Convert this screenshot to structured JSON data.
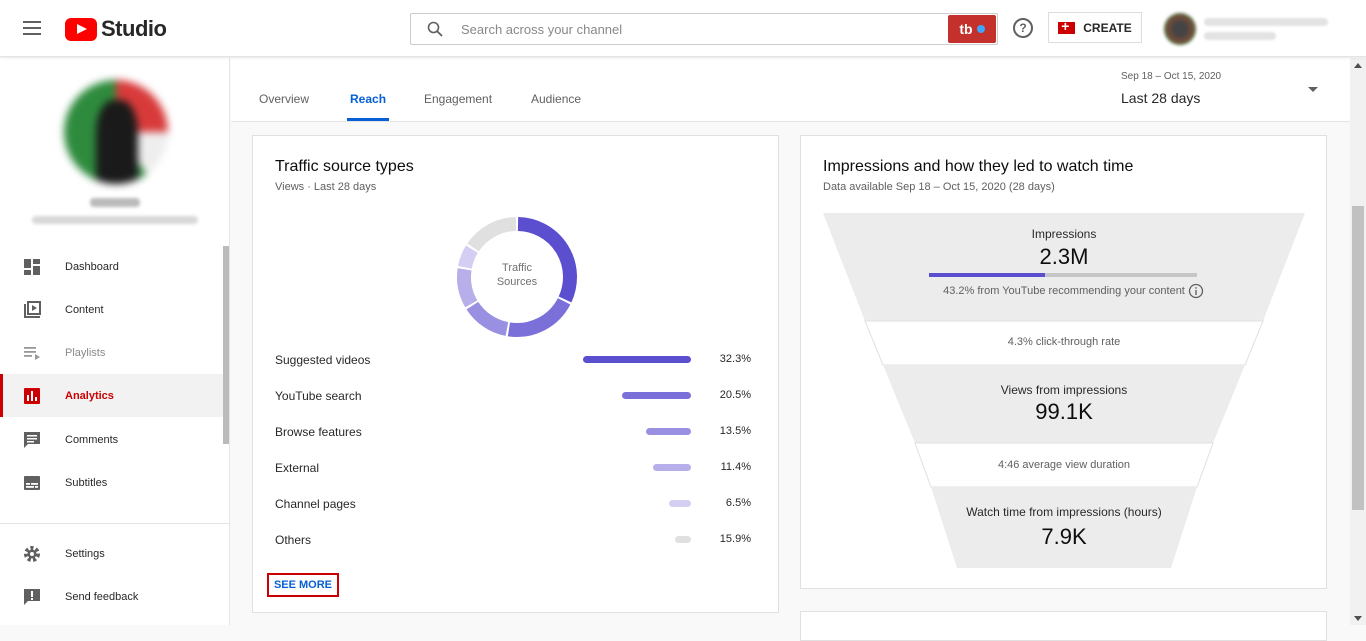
{
  "app": {
    "logo_text": "Studio",
    "tb_badge": "tb"
  },
  "search": {
    "placeholder": "Search across your channel"
  },
  "header": {
    "help_glyph": "?",
    "create_label": "CREATE"
  },
  "sidebar": {
    "items": [
      {
        "label": "Dashboard",
        "icon": "dashboard-icon"
      },
      {
        "label": "Content",
        "icon": "content-icon"
      },
      {
        "label": "Playlists",
        "icon": "playlists-icon"
      },
      {
        "label": "Analytics",
        "icon": "analytics-icon",
        "active": true
      },
      {
        "label": "Comments",
        "icon": "comments-icon"
      },
      {
        "label": "Subtitles",
        "icon": "subtitles-icon"
      },
      {
        "label": "Settings",
        "icon": "settings-icon"
      },
      {
        "label": "Send feedback",
        "icon": "feedback-icon"
      }
    ]
  },
  "tabs": [
    {
      "label": "Overview"
    },
    {
      "label": "Reach",
      "active": true
    },
    {
      "label": "Engagement"
    },
    {
      "label": "Audience"
    }
  ],
  "date_range": {
    "sub": "Sep 18 – Oct 15, 2020",
    "label": "Last 28 days"
  },
  "traffic_card": {
    "title": "Traffic source types",
    "subtitle": "Views · Last 28 days",
    "donut_label_1": "Traffic",
    "donut_label_2": "Sources",
    "see_more": "SEE MORE"
  },
  "chart_data": {
    "type": "pie",
    "categories": [
      "Suggested videos",
      "YouTube search",
      "Browse features",
      "External",
      "Channel pages",
      "Others"
    ],
    "values": [
      32.3,
      20.5,
      13.5,
      11.4,
      6.5,
      15.9
    ],
    "value_labels": [
      "32.3%",
      "20.5%",
      "13.5%",
      "11.4%",
      "6.5%",
      "15.9%"
    ],
    "colors": [
      "#5b4fcf",
      "#7b6fd9",
      "#9a90e2",
      "#b7afea",
      "#d4cff2",
      "#e0e0e0"
    ],
    "title": "Traffic source types"
  },
  "funnel_card": {
    "title": "Impressions and how they led to watch time",
    "subtitle": "Data available Sep 18 – Oct 15, 2020 (28 days)",
    "impressions_label": "Impressions",
    "impressions_value": "2.3M",
    "impressions_note": "43.2% from YouTube recommending your content",
    "impressions_recommended_fraction": 0.432,
    "ctr": "4.3% click-through rate",
    "views_label": "Views from impressions",
    "views_value": "99.1K",
    "avd": "4:46 average view duration",
    "watch_label": "Watch time from impressions (hours)",
    "watch_value": "7.9K"
  }
}
